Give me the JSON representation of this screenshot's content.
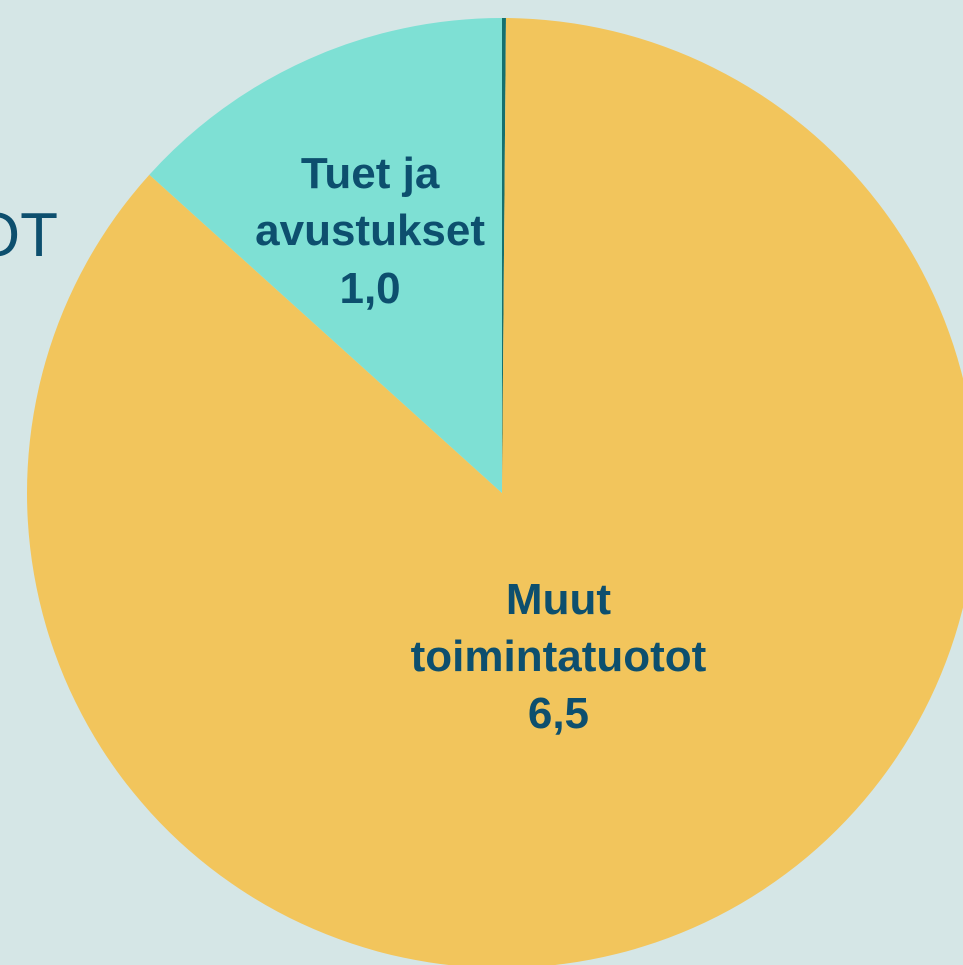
{
  "chart_data": {
    "type": "pie",
    "title": "OT",
    "categories": [
      null,
      "Muut toimintatuotot",
      "Tuet ja avustukset"
    ],
    "values": [
      0.01,
      6.5,
      1.0
    ],
    "value_labels": [
      null,
      "6,5",
      "1,0"
    ],
    "colors": [
      "#16706e",
      "#f2c55c",
      "#7ee0d4"
    ]
  }
}
